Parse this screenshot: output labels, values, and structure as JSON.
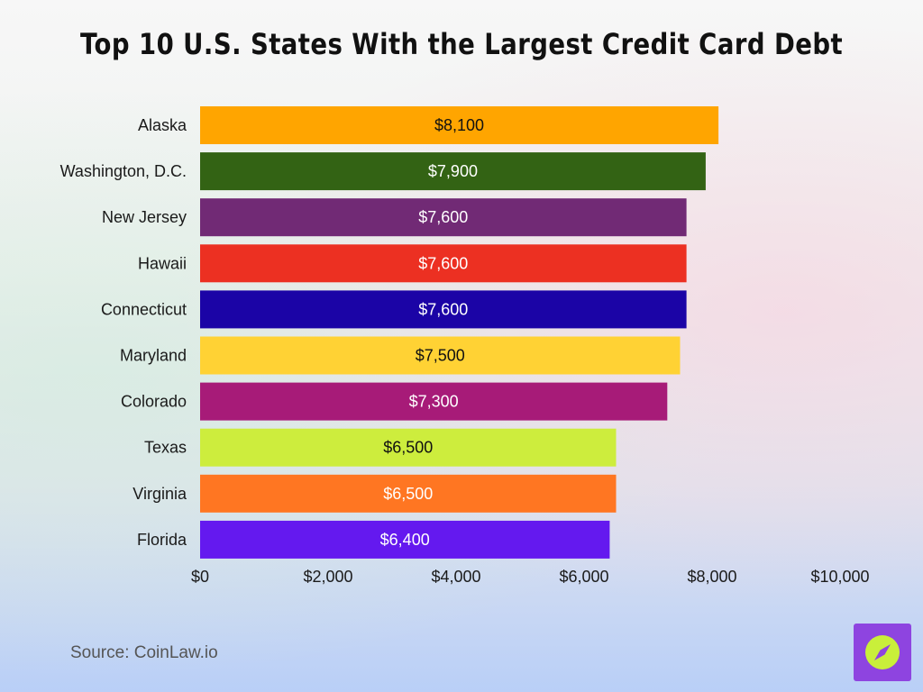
{
  "chart_data": {
    "type": "bar",
    "orientation": "horizontal",
    "title": "Top 10 U.S. States With the Largest Credit Card Debt",
    "categories": [
      "Alaska",
      "Washington, D.C.",
      "New Jersey",
      "Hawaii",
      "Connecticut",
      "Maryland",
      "Colorado",
      "Texas",
      "Virginia",
      "Florida"
    ],
    "values": [
      8100,
      7900,
      7600,
      7600,
      7600,
      7500,
      7300,
      6500,
      6500,
      6400
    ],
    "data_labels": [
      "$8,100",
      "$7,900",
      "$7,600",
      "$7,600",
      "$7,600",
      "$7,500",
      "$7,300",
      "$6,500",
      "$6,500",
      "$6,400"
    ],
    "bar_colors": [
      "#ffa500",
      "#336314",
      "#712a75",
      "#ec3022",
      "#1b04a6",
      "#ffd234",
      "#a71b78",
      "#cded3d",
      "#ff7622",
      "#6419ef"
    ],
    "label_colors": [
      "#111111",
      "#ffffff",
      "#ffffff",
      "#ffffff",
      "#ffffff",
      "#111111",
      "#ffffff",
      "#111111",
      "#ffffff",
      "#ffffff"
    ],
    "xticks": [
      0,
      2000,
      4000,
      6000,
      8000,
      10000
    ],
    "xtick_labels": [
      "$0",
      "$2,000",
      "$4,000",
      "$6,000",
      "$8,000",
      "$10,000"
    ],
    "xlim": [
      0,
      10000
    ],
    "xlabel": "",
    "ylabel": "",
    "grid": false,
    "legend": "none"
  },
  "source": "Source: CoinLaw.io",
  "logo": {
    "icon": "compass-icon",
    "color": "#8e44e0",
    "mark_color": "#c9ef3a"
  }
}
